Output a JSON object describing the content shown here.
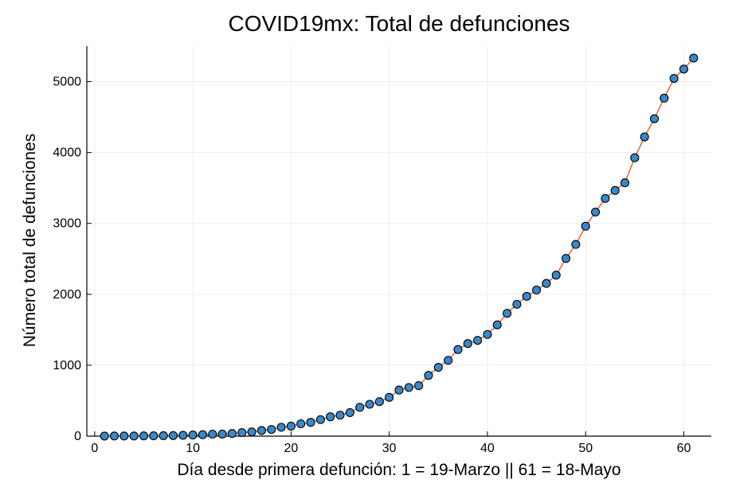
{
  "chart_data": {
    "type": "scatter",
    "title": "COVID19mx: Total de defunciones",
    "xlabel": "Día desde primera defunción: 1 = 19-Marzo || 61 = 18-Mayo",
    "ylabel": "Número total de defunciones",
    "xlim": [
      -0.8,
      62.8
    ],
    "ylim": [
      0,
      5500
    ],
    "xticks": [
      0,
      10,
      20,
      30,
      40,
      50,
      60
    ],
    "yticks": [
      0,
      1000,
      2000,
      3000,
      4000,
      5000
    ],
    "grid": true,
    "legend": "none",
    "line_color": "#e26f46",
    "marker_color": "#3a88c8",
    "marker_edge_color": "#000000",
    "series": [
      {
        "x": [
          1,
          2,
          3,
          4,
          5,
          6,
          7,
          8,
          9,
          10,
          11,
          12,
          13,
          14,
          15,
          16,
          17,
          18,
          19,
          20,
          21,
          22,
          23,
          24,
          25,
          26,
          27,
          28,
          29,
          30,
          31,
          32,
          33,
          34,
          35,
          36,
          37,
          38,
          39,
          40,
          41,
          42,
          43,
          44,
          45,
          46,
          47,
          48,
          49,
          50,
          51,
          52,
          53,
          54,
          55,
          56,
          57,
          58,
          59,
          60,
          61
        ],
        "y": [
          1,
          2,
          2,
          2,
          4,
          5,
          6,
          8,
          12,
          16,
          20,
          28,
          29,
          37,
          50,
          60,
          79,
          94,
          125,
          141,
          174,
          194,
          233,
          273,
          296,
          332,
          406,
          449,
          486,
          546,
          650,
          686,
          712,
          857,
          970,
          1069,
          1221,
          1305,
          1351,
          1434,
          1569,
          1732,
          1859,
          1972,
          2061,
          2154,
          2271,
          2507,
          2704,
          2961,
          3160,
          3353,
          3465,
          3573,
          3926,
          4220,
          4477,
          4767,
          5045,
          5177,
          5332
        ]
      }
    ]
  }
}
